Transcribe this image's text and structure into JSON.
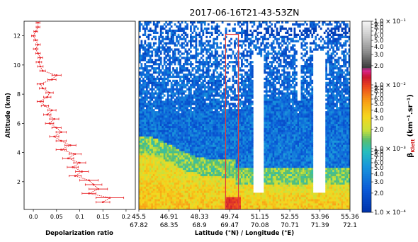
{
  "title": "2017-06-16T21-43-53ZN",
  "colors": {
    "profile": "#e8262a",
    "highlight_box": "#e23b3b",
    "no_data": "#ffffff"
  },
  "chart_data": [
    {
      "type": "line",
      "title": "",
      "xlabel": "Depolarization ratio",
      "ylabel": "Altitude (km)",
      "xlim": [
        -0.02,
        0.22
      ],
      "ylim": [
        0.1,
        13.0
      ],
      "xticks": [
        "0.0",
        "0.05",
        "0.1",
        "0.15",
        "0.2"
      ],
      "yticks": [
        "2",
        "4",
        "6",
        "8",
        "10",
        "12"
      ],
      "error_bars": "horizontal",
      "series": [
        {
          "y": [
            12.9,
            12.6,
            12.3,
            12.0,
            11.7,
            11.4,
            11.1,
            10.8,
            10.5,
            10.2,
            9.9,
            9.6,
            9.3,
            9.0,
            8.7,
            8.4,
            8.1,
            7.8,
            7.5,
            7.2,
            6.9,
            6.6,
            6.3,
            6.0,
            5.7,
            5.4,
            5.1,
            4.8,
            4.5,
            4.2,
            3.9,
            3.6,
            3.3,
            3.0,
            2.7,
            2.4,
            2.1,
            1.8,
            1.5,
            1.2,
            0.9,
            0.6
          ],
          "x": [
            0.01,
            0.01,
            0.005,
            0.0,
            0.005,
            0.01,
            0.005,
            0.01,
            0.015,
            0.012,
            0.015,
            0.02,
            0.05,
            0.04,
            0.015,
            0.02,
            0.035,
            0.03,
            0.015,
            0.025,
            0.04,
            0.03,
            0.045,
            0.035,
            0.05,
            0.06,
            0.045,
            0.06,
            0.08,
            0.06,
            0.09,
            0.075,
            0.1,
            0.085,
            0.105,
            0.09,
            0.12,
            0.13,
            0.14,
            0.12,
            0.165,
            0.15
          ],
          "xerr": [
            0.004,
            0.004,
            0.004,
            0.004,
            0.004,
            0.005,
            0.005,
            0.005,
            0.005,
            0.006,
            0.006,
            0.006,
            0.01,
            0.009,
            0.007,
            0.007,
            0.008,
            0.008,
            0.007,
            0.008,
            0.009,
            0.008,
            0.01,
            0.009,
            0.01,
            0.011,
            0.01,
            0.011,
            0.012,
            0.011,
            0.013,
            0.012,
            0.013,
            0.012,
            0.014,
            0.013,
            0.02,
            0.018,
            0.02,
            0.015,
            0.03,
            0.015
          ]
        }
      ]
    },
    {
      "type": "heatmap",
      "title": "2017-06-16T21-43-53ZN",
      "xlabel": "Latitude (°N) / Longitude (°E)",
      "ylabel": "",
      "ylim": [
        0.1,
        13.0
      ],
      "xticks_top": [
        "45.5",
        "46.91",
        "48.33",
        "49.74",
        "51.15",
        "52.55",
        "53.96",
        "55.36"
      ],
      "xticks_bottom": [
        "67.82",
        "68.35",
        "68.9",
        "69.47",
        "70.08",
        "70.71",
        "71.39",
        "72.1"
      ],
      "latitude_range": [
        45.5,
        55.36
      ],
      "color_scale": "log",
      "colorbar": {
        "label": "β",
        "label_sub": "Klett",
        "label_unit": "(km⁻¹.sr⁻¹)",
        "range": [
          0.0001,
          0.1
        ],
        "tick_labels": [
          "1.0 × 10⁻⁴",
          "2.0",
          "3.0",
          "4.0",
          "5.0",
          "6.0",
          "7.0",
          "8.0",
          "9.0",
          "1.0 × 10⁻³",
          "2.0",
          "3.0",
          "4.0",
          "5.0",
          "6.0",
          "7.0",
          "8.0",
          "9.0",
          "1.0 × 10⁻²",
          "2.0",
          "3.0",
          "4.0",
          "5.0",
          "6.0",
          "7.0",
          "8.0",
          "9.0",
          "1.0 × 10⁻¹"
        ]
      },
      "highlight_latitude": [
        49.55,
        50.15
      ],
      "cloud_gaps": [
        {
          "lat": [
            50.8,
            51.35
          ],
          "alt": [
            1.2,
            10.5
          ]
        },
        {
          "lat": [
            53.6,
            54.2
          ],
          "alt": [
            1.2,
            11.0
          ]
        },
        {
          "lat": [
            52.9,
            53.1
          ],
          "alt": [
            7.5,
            11.5
          ]
        }
      ]
    }
  ]
}
